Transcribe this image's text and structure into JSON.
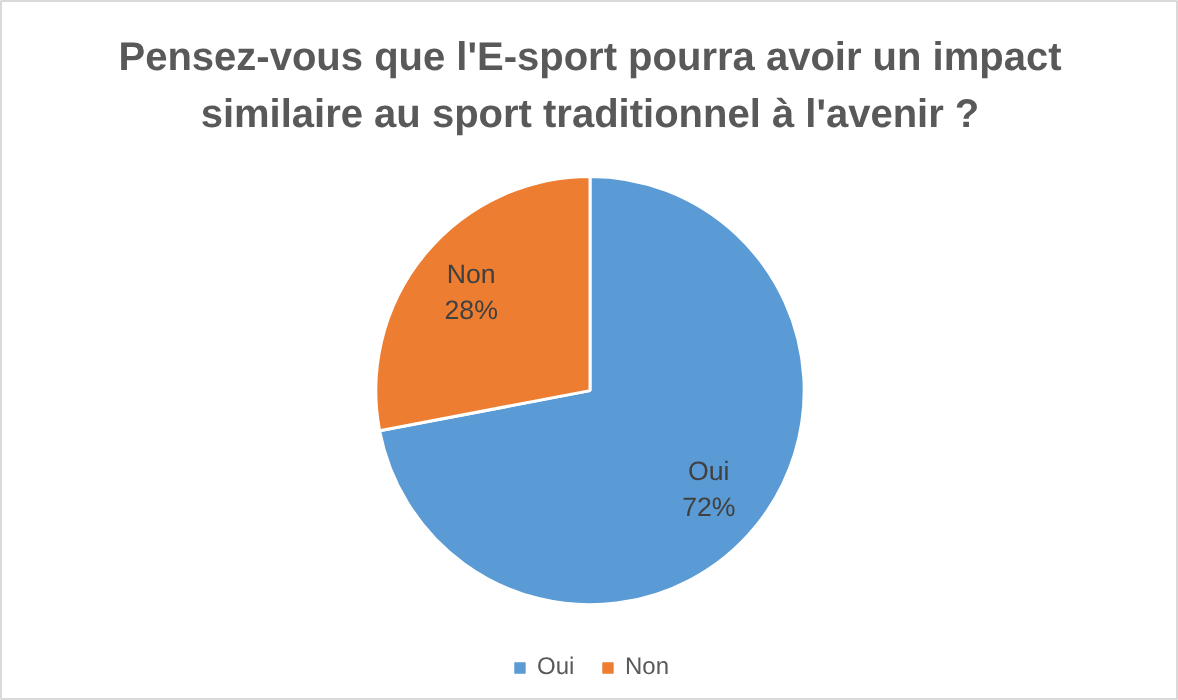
{
  "chart_data": {
    "type": "pie",
    "title": "Pensez-vous que l'E-sport pourra avoir un impact\nsimilaire au sport traditionnel à l'avenir ?",
    "categories": [
      "Oui",
      "Non"
    ],
    "values": [
      72,
      28
    ],
    "colors": [
      "#5b9bd5",
      "#ed7d31"
    ],
    "value_labels": [
      "72%",
      "28%"
    ],
    "legend": "bottom"
  }
}
